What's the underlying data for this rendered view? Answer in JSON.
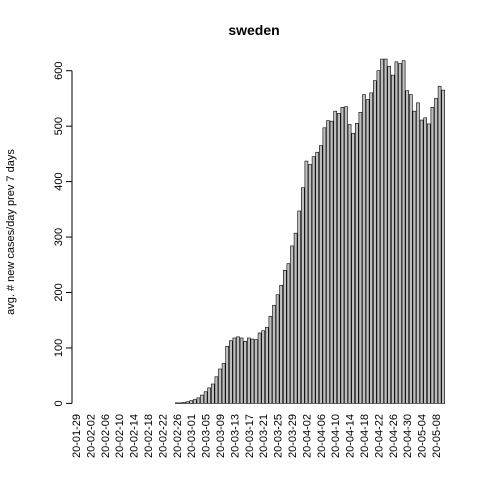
{
  "chart_data": {
    "type": "bar",
    "title": "sweden",
    "xlabel": "",
    "ylabel": "avg. # new cases/day prev  7  days",
    "ylim": [
      0,
      620
    ],
    "yticks": [
      0,
      100,
      200,
      300,
      400,
      500,
      600
    ],
    "tick_labels_x": [
      "20-01-29",
      "20-02-02",
      "20-02-06",
      "20-02-10",
      "20-02-14",
      "20-02-18",
      "20-02-22",
      "20-02-26",
      "20-03-01",
      "20-03-05",
      "20-03-09",
      "20-03-13",
      "20-03-17",
      "20-03-21",
      "20-03-25",
      "20-03-29",
      "20-04-02",
      "20-04-06",
      "20-04-10",
      "20-04-14",
      "20-04-18",
      "20-04-22",
      "20-04-26",
      "20-04-30",
      "20-05-04",
      "20-05-08"
    ],
    "categories": [
      "20-01-29",
      "20-01-30",
      "20-01-31",
      "20-02-01",
      "20-02-02",
      "20-02-03",
      "20-02-04",
      "20-02-05",
      "20-02-06",
      "20-02-07",
      "20-02-08",
      "20-02-09",
      "20-02-10",
      "20-02-11",
      "20-02-12",
      "20-02-13",
      "20-02-14",
      "20-02-15",
      "20-02-16",
      "20-02-17",
      "20-02-18",
      "20-02-19",
      "20-02-20",
      "20-02-21",
      "20-02-22",
      "20-02-23",
      "20-02-24",
      "20-02-25",
      "20-02-26",
      "20-02-27",
      "20-02-28",
      "20-02-29",
      "20-03-01",
      "20-03-02",
      "20-03-03",
      "20-03-04",
      "20-03-05",
      "20-03-06",
      "20-03-07",
      "20-03-08",
      "20-03-09",
      "20-03-10",
      "20-03-11",
      "20-03-12",
      "20-03-13",
      "20-03-14",
      "20-03-15",
      "20-03-16",
      "20-03-17",
      "20-03-18",
      "20-03-19",
      "20-03-20",
      "20-03-21",
      "20-03-22",
      "20-03-23",
      "20-03-24",
      "20-03-25",
      "20-03-26",
      "20-03-27",
      "20-03-28",
      "20-03-29",
      "20-03-30",
      "20-03-31",
      "20-04-01",
      "20-04-02",
      "20-04-03",
      "20-04-04",
      "20-04-05",
      "20-04-06",
      "20-04-07",
      "20-04-08",
      "20-04-09",
      "20-04-10",
      "20-04-11",
      "20-04-12",
      "20-04-13",
      "20-04-14",
      "20-04-15",
      "20-04-16",
      "20-04-17",
      "20-04-18",
      "20-04-19",
      "20-04-20",
      "20-04-21",
      "20-04-22",
      "20-04-23",
      "20-04-24",
      "20-04-25",
      "20-04-26",
      "20-04-27",
      "20-04-28",
      "20-04-29",
      "20-04-30",
      "20-05-01",
      "20-05-02",
      "20-05-03",
      "20-05-04",
      "20-05-05",
      "20-05-06",
      "20-05-07",
      "20-05-08",
      "20-05-09",
      "20-05-10"
    ],
    "values": [
      0,
      0,
      0,
      0,
      0,
      0,
      0,
      0,
      0,
      0,
      0,
      0,
      0,
      0,
      0,
      0,
      0,
      0,
      0,
      0,
      0,
      0,
      0,
      0,
      0,
      0,
      0,
      0,
      1,
      1,
      2,
      3,
      5,
      7,
      10,
      15,
      21,
      28,
      35,
      48,
      62,
      72,
      103,
      113,
      118,
      120,
      118,
      112,
      118,
      116,
      115,
      127,
      131,
      137,
      157,
      177,
      196,
      213,
      240,
      252,
      284,
      307,
      347,
      389,
      437,
      431,
      445,
      453,
      465,
      497,
      510,
      509,
      527,
      523,
      534,
      535,
      503,
      487,
      505,
      525,
      557,
      548,
      560,
      582,
      600,
      621,
      621,
      608,
      592,
      616,
      613,
      618,
      564,
      557,
      527,
      542,
      511,
      515,
      504,
      534,
      550,
      572,
      565
    ]
  }
}
